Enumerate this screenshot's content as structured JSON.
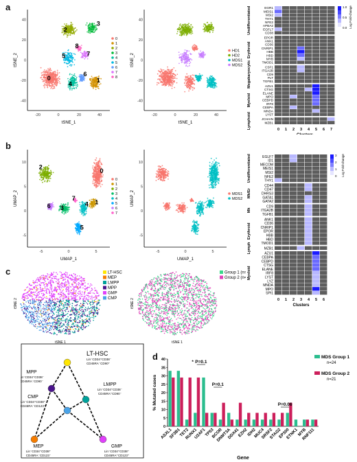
{
  "figure": {
    "panels": {
      "a": {
        "letter": "a",
        "tsne_left": {
          "xlabel": "tSNE_1",
          "ylabel": "tSNE_2",
          "xticks": [
            "-20",
            "0",
            "20",
            "40"
          ],
          "yticks": [
            "40",
            "20",
            "0",
            "-20",
            "-40"
          ],
          "legend": [
            "0",
            "1",
            "2",
            "3",
            "4",
            "5",
            "6",
            "7",
            "8"
          ],
          "cluster_labels": [
            "0",
            "1",
            "2",
            "3",
            "4",
            "5",
            "6",
            "7",
            "8"
          ]
        },
        "tsne_right": {
          "xlabel": "tSNE_1",
          "ylabel": "tSNE_2",
          "xticks": [
            "-20",
            "0",
            "20",
            "40"
          ],
          "yticks": [
            "40",
            "20",
            "0",
            "-20",
            "-40"
          ],
          "legend": [
            "HD1",
            "HD2",
            "MDS1",
            "MDS2"
          ]
        },
        "heatmap": {
          "xlabel": "Clusters",
          "xticks": [
            "0",
            "1",
            "2",
            "3",
            "4",
            "5",
            "6",
            "7"
          ],
          "colorbar_label": "Log Fold-change",
          "colorbar_ticks": [
            "1.0",
            "0.5",
            "0.0"
          ],
          "groups": [
            {
              "name": "Undifferentiated",
              "genes": [
                "EGR1",
                "MEIS1",
                "MSI2",
                "THY1",
                "NFE2",
                "APBA2",
                "EGFL7",
                "CD38"
              ]
            },
            {
              "name": "Erythroid",
              "genes": [
                "EPOR",
                "ANK1",
                "CD36",
                "CNRIP1",
                "HBB",
                "HBD",
                "MYB",
                "TMOD1"
              ]
            },
            {
              "name": "Megakaryocytic",
              "genes": [
                "CSF1",
                "ITGA2B",
                "CD9",
                "PLT",
                "TGFB1"
              ]
            },
            {
              "name": "Myeloid",
              "genes": [
                "AZU1",
                "CTSG",
                "ELANE",
                "MPO",
                "CEBPD",
                "IRF8",
                "CEBPA",
                "MNDA",
                "LYST"
              ]
            },
            {
              "name": "Lymphoid",
              "genes": [
                "JCHAIN",
                "MZB1"
              ]
            }
          ]
        }
      },
      "b": {
        "letter": "b",
        "umap_left": {
          "xlabel": "UMAP_1",
          "ylabel": "UMAP_2",
          "xticks": [
            "-5",
            "0",
            "5"
          ],
          "yticks": [
            "10",
            "5",
            "0",
            "-5"
          ],
          "legend": [
            "0",
            "1",
            "2",
            "3",
            "4",
            "5",
            "6",
            "7"
          ],
          "cluster_labels": [
            "0",
            "1",
            "2",
            "3",
            "4",
            "5",
            "6",
            "7"
          ]
        },
        "umap_right": {
          "xlabel": "UMAP_1",
          "ylabel": "UMAP_2",
          "xticks": [
            "-5",
            "0",
            "5"
          ],
          "yticks": [
            "10",
            "5",
            "0",
            "-5"
          ],
          "legend": [
            "MDS1",
            "MDS2"
          ]
        },
        "heatmap": {
          "xlabel": "Clusters",
          "xticks": [
            "0",
            "1",
            "2",
            "3",
            "4",
            "5",
            "6"
          ],
          "colorbar_label": "Log Fold-change",
          "colorbar_ticks": [
            "3",
            "2",
            "1",
            "0"
          ],
          "groups": [
            {
              "name": "Undifferentiated",
              "genes": [
                "EGLF7",
                "ID1",
                "MECOM",
                "MEIS1",
                "MSI2",
                "NFE2",
                "THY1"
              ]
            },
            {
              "name": "Mk/Er",
              "genes": [
                "CD44",
                "CD47",
                "DHRS3",
                "GATA1",
                "GATA2"
              ]
            },
            {
              "name": "Mk",
              "genes": [
                "CD9",
                "ITGA2B",
                "TGFB1"
              ]
            },
            {
              "name": "Erythroid",
              "genes": [
                "ANK1",
                "CD36",
                "CNRIP1",
                "EPOR",
                "HBB",
                "HBD",
                "TMOD1"
              ]
            },
            {
              "name": "Lymph",
              "genes": [
                "MZB1"
              ]
            },
            {
              "name": "Myeloid",
              "genes": [
                "AZU1",
                "CEBPA",
                "CEBPD",
                "CTSG",
                "ELANE",
                "IRF8",
                "LYST",
                "LYZ",
                "MNDA",
                "MPO",
                "SPI1"
              ]
            }
          ]
        }
      },
      "c": {
        "letter": "c",
        "tsne_left": {
          "xlabel": "tSNE 1",
          "ylabel": "tSNE 2",
          "legend": [
            "LT-HSC",
            "MEP",
            "LMPP",
            "MPP",
            "GMP",
            "CMP"
          ]
        },
        "tsne_right": {
          "xlabel": "tSNE 1",
          "ylabel": "tSNE 2",
          "legend": [
            "Group 1 (n=64)",
            "Group 2 (n=59)"
          ]
        },
        "tree": {
          "nodes": [
            {
              "title": "LT-HSC",
              "sub": "Lin⁻CD34⁺CD38⁻\nCD45RA⁻CD90⁺"
            },
            {
              "title": "MPP",
              "sub": "Lin⁻CD34⁺CD38⁻\nCD45RA⁻CD90⁻"
            },
            {
              "title": "LMPP",
              "sub": "Lin⁻CD34⁺CD38⁻\nCD45RA⁺CD90⁻"
            },
            {
              "title": "CMP",
              "sub": "Lin⁻CD34⁺CD38⁺\nCD45RA⁻CD123⁺"
            },
            {
              "title": "MEP",
              "sub": "Lin⁻CD34⁺CD38⁺\nCD45RA⁻CD123⁻"
            },
            {
              "title": "GMP",
              "sub": "Lin⁻CD34⁺CD38⁺\nCD45RA⁺CD123⁺"
            }
          ]
        }
      },
      "d": {
        "letter": "d",
        "chart_data": {
          "type": "bar",
          "xlabel": "Gene",
          "ylabel": "% Mutated cases",
          "ylim": [
            0,
            40
          ],
          "yticks": [
            "0",
            "5",
            "10",
            "15",
            "20",
            "25",
            "30",
            "35",
            "40"
          ],
          "categories": [
            "ASXL1",
            "SF3B1",
            "TET2",
            "RUNX1",
            "U2AF1",
            "TP53",
            "BCOR",
            "DNMT3A",
            "DDX41",
            "EZH2",
            "IDH2",
            "MUC4",
            "SRSF2",
            "STAG2",
            "EP300",
            "ETNK1",
            "MYB",
            "RNF111"
          ],
          "series": [
            {
              "name": "MDS Group 1",
              "n": "n=24",
              "color": "#2bbd8e",
              "values": [
                33,
                33,
                4,
                8,
                29,
                8,
                4,
                8,
                4,
                4,
                4,
                4,
                4,
                4,
                8,
                4,
                4,
                4
              ]
            },
            {
              "name": "MDS Group 2",
              "n": "n=21",
              "color": "#cc1f5b",
              "values": [
                29,
                29,
                29,
                29,
                8,
                8,
                14,
                4,
                14,
                8,
                8,
                8,
                8,
                8,
                14,
                0,
                4,
                4
              ]
            }
          ],
          "annotations": [
            {
              "text": "*",
              "between": [
                "TET2",
                "RUNX1"
              ]
            },
            {
              "text": "P=0.1",
              "between": [
                "RUNX1",
                "U2AF1"
              ]
            },
            {
              "text": "P=0.1",
              "between": [
                "TP53",
                "BCOR"
              ]
            },
            {
              "text": "P=0.06",
              "between": [
                "STAG2",
                "EP300"
              ]
            }
          ]
        }
      }
    }
  }
}
